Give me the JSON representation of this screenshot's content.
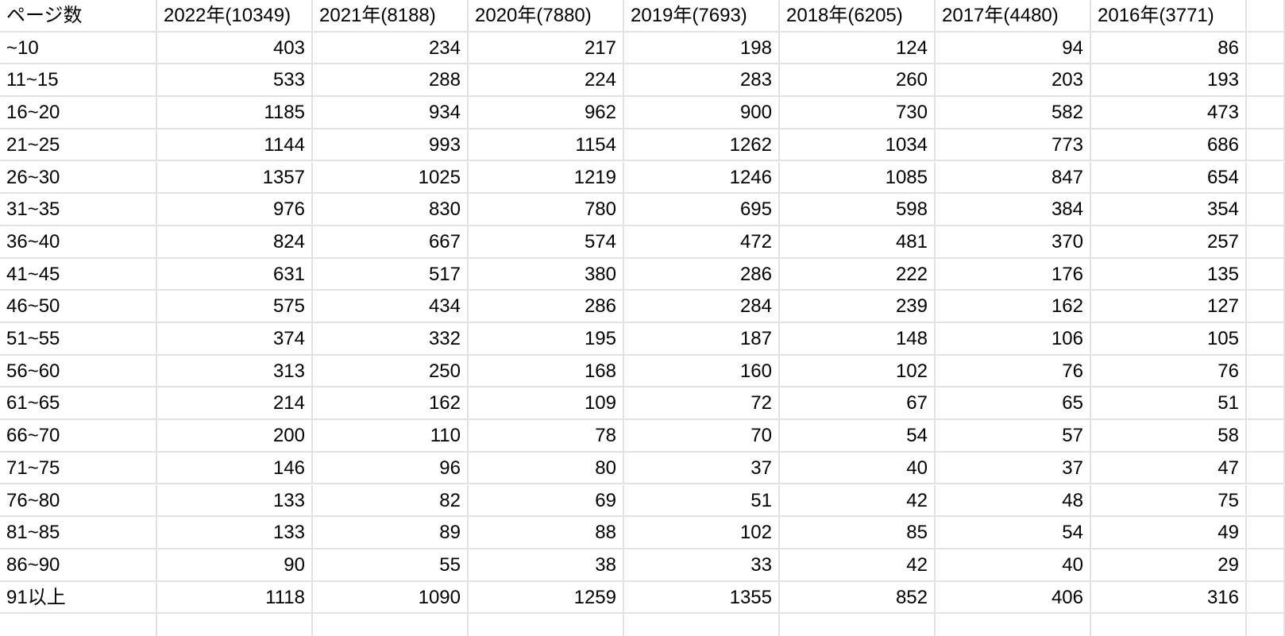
{
  "table": {
    "header": [
      "ページ数",
      "2022年(10349)",
      "2021年(8188)",
      "2020年(7880)",
      "2019年(7693)",
      "2018年(6205)",
      "2017年(4480)",
      "2016年(3771)"
    ],
    "rows": [
      [
        "~10",
        403,
        234,
        217,
        198,
        124,
        94,
        86
      ],
      [
        "11~15",
        533,
        288,
        224,
        283,
        260,
        203,
        193
      ],
      [
        "16~20",
        1185,
        934,
        962,
        900,
        730,
        582,
        473
      ],
      [
        "21~25",
        1144,
        993,
        1154,
        1262,
        1034,
        773,
        686
      ],
      [
        "26~30",
        1357,
        1025,
        1219,
        1246,
        1085,
        847,
        654
      ],
      [
        "31~35",
        976,
        830,
        780,
        695,
        598,
        384,
        354
      ],
      [
        "36~40",
        824,
        667,
        574,
        472,
        481,
        370,
        257
      ],
      [
        "41~45",
        631,
        517,
        380,
        286,
        222,
        176,
        135
      ],
      [
        "46~50",
        575,
        434,
        286,
        284,
        239,
        162,
        127
      ],
      [
        "51~55",
        374,
        332,
        195,
        187,
        148,
        106,
        105
      ],
      [
        "56~60",
        313,
        250,
        168,
        160,
        102,
        76,
        76
      ],
      [
        "61~65",
        214,
        162,
        109,
        72,
        67,
        65,
        51
      ],
      [
        "66~70",
        200,
        110,
        78,
        70,
        54,
        57,
        58
      ],
      [
        "71~75",
        146,
        96,
        80,
        37,
        40,
        37,
        47
      ],
      [
        "76~80",
        133,
        82,
        69,
        51,
        42,
        48,
        75
      ],
      [
        "81~85",
        133,
        89,
        88,
        102,
        85,
        54,
        49
      ],
      [
        "86~90",
        90,
        55,
        38,
        33,
        42,
        40,
        29
      ],
      [
        "91以上",
        1118,
        1090,
        1259,
        1355,
        852,
        406,
        316
      ]
    ]
  }
}
